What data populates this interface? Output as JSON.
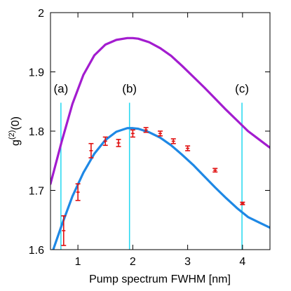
{
  "chart_data": {
    "type": "line",
    "xlabel": "Pump spectrum FWHM [nm]",
    "ylabel": {
      "base": "g",
      "sup": "(2)",
      "tail": "(0)"
    },
    "xlim": [
      0.5,
      4.5
    ],
    "ylim": [
      1.6,
      2.0
    ],
    "x_ticks": [
      1,
      2,
      3,
      4
    ],
    "x_tick_labels": [
      "1",
      "2",
      "3",
      "4"
    ],
    "y_ticks": [
      1.6,
      1.7,
      1.8,
      1.9,
      2.0
    ],
    "y_tick_labels": [
      "1.6",
      "1.7",
      "1.8",
      "1.9",
      "2"
    ],
    "grid": false,
    "series": [
      {
        "kind": "curve",
        "color": "#a31ccf",
        "x": [
          0.5,
          0.7,
          0.9,
          1.1,
          1.3,
          1.5,
          1.7,
          1.9,
          2.0,
          2.1,
          2.3,
          2.5,
          2.7,
          2.9,
          3.1,
          3.3,
          3.5,
          3.7,
          3.9,
          4.1,
          4.3,
          4.5
        ],
        "y": [
          1.711,
          1.781,
          1.846,
          1.895,
          1.928,
          1.946,
          1.954,
          1.957,
          1.957,
          1.956,
          1.95,
          1.94,
          1.927,
          1.91,
          1.892,
          1.874,
          1.855,
          1.836,
          1.818,
          1.8,
          1.786,
          1.772
        ]
      },
      {
        "kind": "curve",
        "color": "#1e88e5",
        "x": [
          0.55,
          0.7,
          0.9,
          1.1,
          1.3,
          1.5,
          1.7,
          1.9,
          2.0,
          2.1,
          2.3,
          2.5,
          2.7,
          2.9,
          3.1,
          3.3,
          3.5,
          3.7,
          3.9,
          4.1,
          4.3,
          4.5
        ],
        "y": [
          1.6,
          1.64,
          1.69,
          1.73,
          1.762,
          1.785,
          1.799,
          1.805,
          1.805,
          1.804,
          1.798,
          1.789,
          1.776,
          1.76,
          1.743,
          1.724,
          1.705,
          1.687,
          1.67,
          1.655,
          1.646,
          1.637
        ]
      },
      {
        "kind": "errorbars",
        "color": "#e01010",
        "x": [
          0.74,
          1.0,
          1.24,
          1.5,
          1.74,
          2.0,
          2.24,
          2.5,
          2.74,
          3.0,
          3.5,
          4.0
        ],
        "y": [
          1.632,
          1.697,
          1.767,
          1.783,
          1.78,
          1.796,
          1.802,
          1.796,
          1.783,
          1.771,
          1.734,
          1.678
        ],
        "err": [
          0.025,
          0.014,
          0.012,
          0.007,
          0.006,
          0.006,
          0.004,
          0.004,
          0.004,
          0.004,
          0.003,
          0.002
        ]
      }
    ],
    "vlines": [
      {
        "x": 0.69,
        "label": "(a)"
      },
      {
        "x": 1.94,
        "label": "(b)"
      },
      {
        "x": 3.99,
        "label": "(c)"
      }
    ],
    "vline_color": "#22d8f0"
  }
}
